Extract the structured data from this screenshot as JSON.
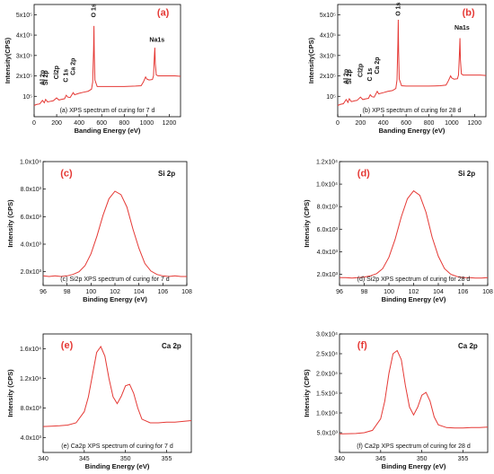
{
  "chart_data": [
    {
      "type": "line",
      "panel_label": "(a)",
      "caption": "(a) XPS spectrum of curing for 7 d",
      "xlabel": "Banding Energy (eV)",
      "ylabel": "Intensity(CPS)",
      "xlim": [
        0,
        1300
      ],
      "ylim": [
        0,
        550000
      ],
      "xticks": [
        "0",
        "200",
        "400",
        "600",
        "800",
        "1000",
        "1200"
      ],
      "xtick_values": [
        0,
        200,
        400,
        600,
        800,
        1000,
        1200
      ],
      "yticks": [
        "10⁵",
        "2x10⁵",
        "3x10⁵",
        "4x10⁵",
        "5x10⁵"
      ],
      "ytick_values": [
        100000,
        200000,
        300000,
        400000,
        500000
      ],
      "annotations": [
        {
          "text": "Al 2p",
          "x": 74,
          "y": 145000
        },
        {
          "text": "Si 2p",
          "x": 102,
          "y": 145000
        },
        {
          "text": "Cl2p",
          "x": 199,
          "y": 175000
        },
        {
          "text": "C 1s",
          "x": 285,
          "y": 160000
        },
        {
          "text": "Ca 2p",
          "x": 347,
          "y": 195000
        },
        {
          "text": "O 1s",
          "x": 531,
          "y": 478000
        },
        {
          "text": "Na1s",
          "x": 1072,
          "y": 350000
        }
      ],
      "x": [
        0,
        20,
        50,
        74,
        90,
        102,
        120,
        150,
        170,
        199,
        220,
        250,
        270,
        285,
        300,
        320,
        347,
        360,
        400,
        440,
        480,
        510,
        520,
        528,
        531,
        534,
        540,
        560,
        600,
        650,
        700,
        750,
        800,
        850,
        900,
        950,
        970,
        990,
        1000,
        1020,
        1050,
        1060,
        1068,
        1072,
        1076,
        1085,
        1100,
        1150,
        1200,
        1250,
        1300
      ],
      "values": [
        55000,
        60000,
        63000,
        80000,
        68000,
        85000,
        72000,
        76000,
        78000,
        92000,
        82000,
        86000,
        88000,
        105000,
        96000,
        94000,
        118000,
        108000,
        115000,
        120000,
        125000,
        135000,
        170000,
        330000,
        445000,
        300000,
        180000,
        148000,
        148000,
        148000,
        148000,
        148000,
        148000,
        149000,
        150000,
        152000,
        170000,
        195000,
        185000,
        180000,
        182000,
        200000,
        300000,
        338000,
        260000,
        205000,
        200000,
        200000,
        200000,
        200000,
        198000
      ]
    },
    {
      "type": "line",
      "panel_label": "(b)",
      "caption": "(b) XPS spectrum of curing for 28 d",
      "xlabel": "Banding Energy (eV)",
      "ylabel": "Intensity(CPS)",
      "xlim": [
        0,
        1300
      ],
      "ylim": [
        0,
        550000
      ],
      "xticks": [
        "0",
        "200",
        "400",
        "600",
        "800",
        "1000",
        "1200"
      ],
      "xtick_values": [
        0,
        200,
        400,
        600,
        800,
        1000,
        1200
      ],
      "yticks": [
        "10⁵",
        "2x10⁵",
        "3x10⁵",
        "4x10⁵",
        "5x10⁵"
      ],
      "ytick_values": [
        100000,
        200000,
        300000,
        400000,
        500000
      ],
      "annotations": [
        {
          "text": "Al 2p",
          "x": 74,
          "y": 150000
        },
        {
          "text": "Si 2p",
          "x": 102,
          "y": 150000
        },
        {
          "text": "Cl2p",
          "x": 199,
          "y": 185000
        },
        {
          "text": "C 1s",
          "x": 285,
          "y": 165000
        },
        {
          "text": "Ca 2p",
          "x": 347,
          "y": 200000
        },
        {
          "text": "O 1s",
          "x": 531,
          "y": 485000
        },
        {
          "text": "Na1s",
          "x": 1072,
          "y": 410000
        }
      ],
      "x": [
        0,
        20,
        50,
        74,
        90,
        102,
        120,
        150,
        170,
        199,
        220,
        250,
        270,
        285,
        300,
        320,
        347,
        360,
        400,
        440,
        480,
        510,
        520,
        528,
        531,
        534,
        540,
        560,
        600,
        650,
        700,
        750,
        800,
        850,
        900,
        950,
        970,
        990,
        1000,
        1020,
        1050,
        1060,
        1068,
        1072,
        1076,
        1085,
        1100,
        1150,
        1200,
        1250,
        1300
      ],
      "values": [
        55000,
        60000,
        64000,
        84000,
        70000,
        88000,
        74000,
        78000,
        80000,
        96000,
        84000,
        88000,
        90000,
        108000,
        98000,
        96000,
        124000,
        112000,
        118000,
        124000,
        128000,
        138000,
        180000,
        360000,
        475000,
        320000,
        185000,
        152000,
        150000,
        150000,
        150000,
        150000,
        150000,
        151000,
        152000,
        155000,
        175000,
        200000,
        190000,
        184000,
        186000,
        205000,
        320000,
        385000,
        280000,
        210000,
        204000,
        204000,
        204000,
        204000,
        202000
      ]
    },
    {
      "type": "line",
      "panel_label": "(c)",
      "caption": "(c) Si2p XPS spectrum of curing for 7 d",
      "peak_label": "Si 2p",
      "xlabel": "Binding Energy (eV)",
      "ylabel": "Intensity (CPS)",
      "xlim": [
        96,
        108
      ],
      "ylim": [
        1000,
        10000
      ],
      "xticks": [
        "96",
        "98",
        "100",
        "102",
        "104",
        "106",
        "108"
      ],
      "xtick_values": [
        96,
        98,
        100,
        102,
        104,
        106,
        108
      ],
      "yticks": [
        "2.0x10³",
        "4.0x10³",
        "6.0x10³",
        "8.0x10³",
        "1.0x10⁴"
      ],
      "ytick_values": [
        2000,
        4000,
        6000,
        8000,
        10000
      ],
      "x": [
        96,
        96.5,
        97,
        97.5,
        98,
        98.5,
        99,
        99.5,
        100,
        100.5,
        101,
        101.5,
        102,
        102.5,
        103,
        103.5,
        104,
        104.5,
        105,
        105.5,
        106,
        106.5,
        107,
        107.5,
        108
      ],
      "values": [
        1700,
        1650,
        1700,
        1650,
        1700,
        1800,
        2000,
        2450,
        3300,
        4600,
        6100,
        7300,
        7850,
        7600,
        6700,
        5100,
        3700,
        2600,
        2050,
        1800,
        1700,
        1650,
        1700,
        1650,
        1650
      ]
    },
    {
      "type": "line",
      "panel_label": "(d)",
      "caption": "(d) Si2p XPS spectrum of curing for 28 d",
      "peak_label": "Si 2p",
      "xlabel": "Binding Energy (eV)",
      "ylabel": "Intensity (CPS)",
      "xlim": [
        96,
        108
      ],
      "ylim": [
        1000,
        12000
      ],
      "xticks": [
        "96",
        "98",
        "100",
        "102",
        "104",
        "106",
        "108"
      ],
      "xtick_values": [
        96,
        98,
        100,
        102,
        104,
        106,
        108
      ],
      "yticks": [
        "2.0x10³",
        "4.0x10³",
        "6.0x10³",
        "8.0x10³",
        "1.0x10⁴",
        "1.2x10⁴"
      ],
      "ytick_values": [
        2000,
        4000,
        6000,
        8000,
        10000,
        12000
      ],
      "x": [
        96,
        96.5,
        97,
        97.5,
        98,
        98.5,
        99,
        99.5,
        100,
        100.5,
        101,
        101.5,
        102,
        102.5,
        103,
        103.5,
        104,
        104.5,
        105,
        105.5,
        106,
        106.5,
        107,
        107.5,
        108
      ],
      "values": [
        1700,
        1700,
        1650,
        1700,
        1750,
        1850,
        2050,
        2500,
        3500,
        5100,
        7100,
        8700,
        9400,
        9000,
        7500,
        5300,
        3600,
        2500,
        2000,
        1800,
        1700,
        1700,
        1650,
        1650,
        1700
      ]
    },
    {
      "type": "line",
      "panel_label": "(e)",
      "caption": "(e) Ca2p XPS spectrum of curing for 7 d",
      "peak_label": "Ca 2p",
      "xlabel": "Binding Energy (eV)",
      "ylabel": "Intensity (CPS)",
      "xlim": [
        340,
        358
      ],
      "ylim": [
        2000,
        18000
      ],
      "xticks": [
        "340",
        "345",
        "350",
        "355"
      ],
      "xtick_values": [
        340,
        345,
        350,
        355
      ],
      "yticks": [
        "4.0x10³",
        "8.0x10³",
        "1.2x10⁴",
        "1.6x10⁴"
      ],
      "ytick_values": [
        4000,
        8000,
        12000,
        16000
      ],
      "x": [
        340,
        341,
        342,
        343,
        344,
        345,
        345.5,
        346,
        346.5,
        347,
        347.5,
        348,
        348.5,
        349,
        349.5,
        350,
        350.5,
        351,
        351.5,
        352,
        353,
        354,
        355,
        356,
        357,
        358
      ],
      "values": [
        5500,
        5550,
        5600,
        5700,
        6000,
        7500,
        9500,
        12500,
        15500,
        16300,
        15000,
        12000,
        9500,
        8600,
        9600,
        11000,
        11200,
        10000,
        8000,
        6500,
        6000,
        6000,
        6100,
        6100,
        6200,
        6300
      ]
    },
    {
      "type": "line",
      "panel_label": "(f)",
      "caption": "(f) Ca2p XPS spectrum of curing for 28 d",
      "peak_label": "Ca 2p",
      "xlabel": "Binding Energy (eV)",
      "ylabel": "Intensity (CPS)",
      "xlim": [
        340,
        358
      ],
      "ylim": [
        0,
        30000
      ],
      "xticks": [
        "340",
        "345",
        "350",
        "355"
      ],
      "xtick_values": [
        340,
        345,
        350,
        355
      ],
      "yticks": [
        "5.0x10³",
        "1.0x10⁴",
        "1.5x10⁴",
        "2.0x10⁴",
        "2.5x10⁴",
        "3.0x10⁴"
      ],
      "ytick_values": [
        5000,
        10000,
        15000,
        20000,
        25000,
        30000
      ],
      "x": [
        340,
        341,
        342,
        343,
        344,
        345,
        345.5,
        346,
        346.5,
        347,
        347.5,
        348,
        348.5,
        349,
        349.5,
        350,
        350.5,
        351,
        351.5,
        352,
        353,
        354,
        355,
        356,
        357,
        358
      ],
      "values": [
        4700,
        4750,
        4800,
        5000,
        5600,
        8500,
        13000,
        20000,
        25000,
        25800,
        23500,
        17000,
        11500,
        9500,
        11500,
        14500,
        15200,
        13000,
        9000,
        7000,
        6300,
        6200,
        6200,
        6300,
        6300,
        6400
      ]
    }
  ]
}
